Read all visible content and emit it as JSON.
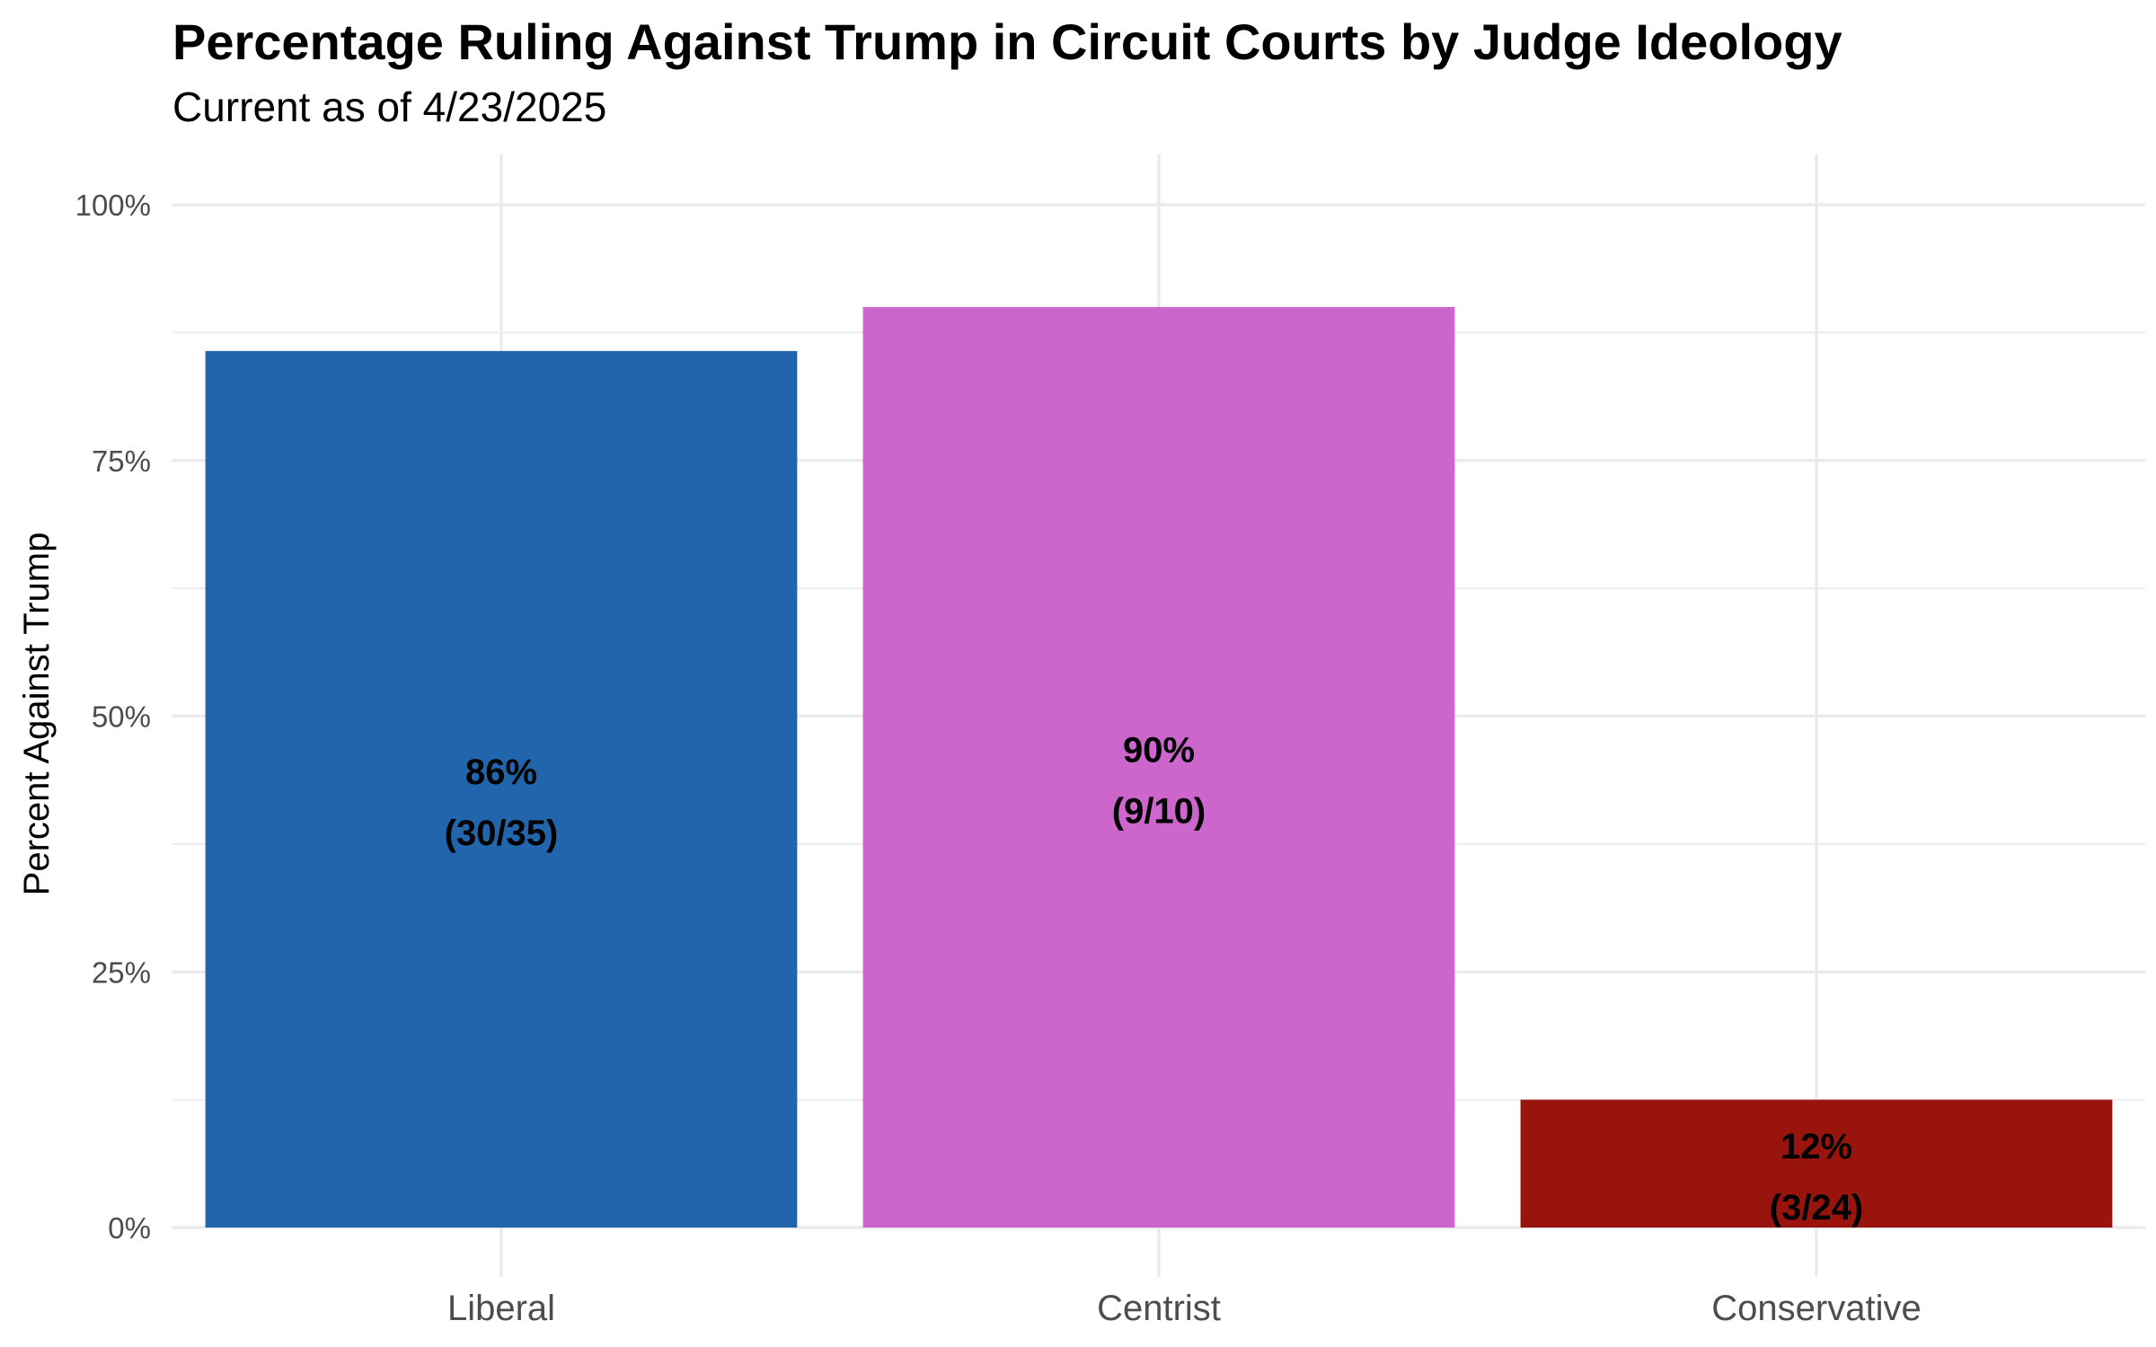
{
  "chart_data": {
    "type": "bar",
    "title": "Percentage Ruling Against Trump in Circuit Courts by Judge Ideology",
    "subtitle": "Current as of 4/23/2025",
    "xlabel": "",
    "ylabel": "Percent Against Trump",
    "categories": [
      "Liberal",
      "Centrist",
      "Conservative"
    ],
    "values": [
      85.7,
      90.0,
      12.5
    ],
    "data_labels": [
      {
        "percent": "86%",
        "fraction": "(30/35)"
      },
      {
        "percent": "90%",
        "fraction": "(9/10)"
      },
      {
        "percent": "12%",
        "fraction": "(3/24)"
      }
    ],
    "colors": [
      "#2166ac",
      "#cc66cc",
      "#99140c"
    ],
    "ylim": [
      0,
      100
    ],
    "yticks": [
      0,
      25,
      50,
      75,
      100
    ],
    "ytick_labels": [
      "0%",
      "25%",
      "50%",
      "75%",
      "100%"
    ],
    "grid": true,
    "legend": "none"
  }
}
